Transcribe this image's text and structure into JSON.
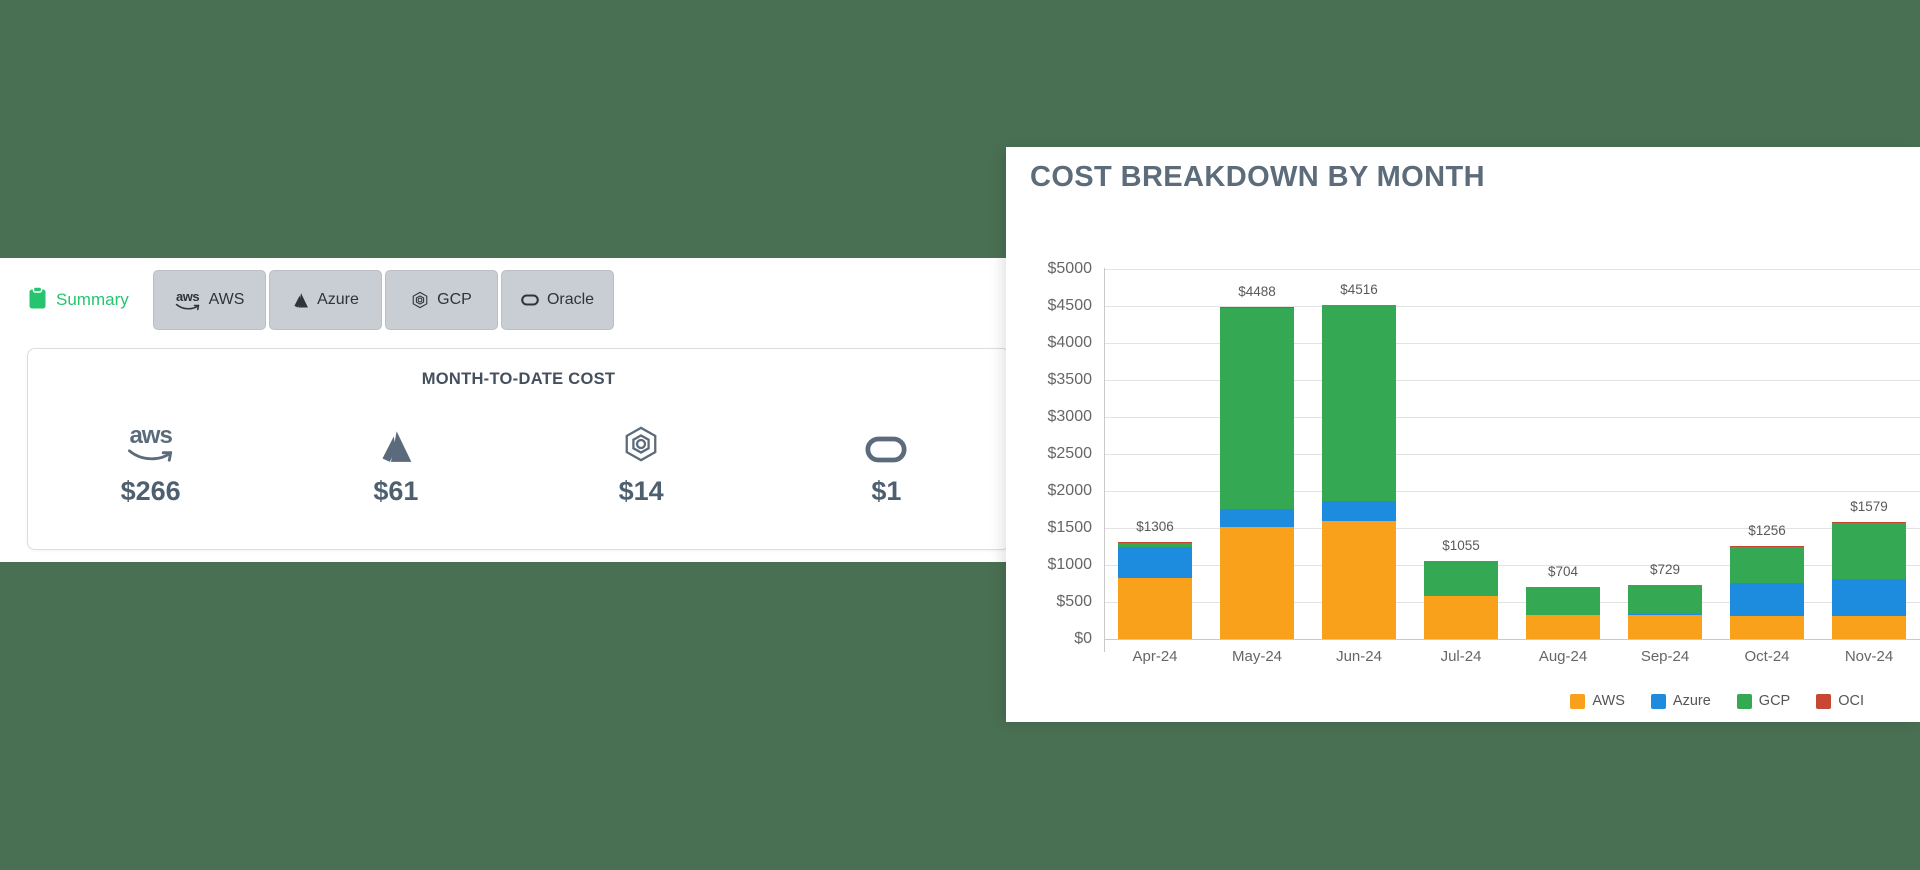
{
  "tabs": {
    "summary": {
      "label": "Summary"
    },
    "aws": {
      "label": "AWS"
    },
    "azure": {
      "label": "Azure"
    },
    "gcp": {
      "label": "GCP"
    },
    "oracle": {
      "label": "Oracle"
    }
  },
  "summary_card": {
    "title": "MONTH-TO-DATE COST",
    "providers": [
      {
        "name": "AWS",
        "icon": "aws-logo",
        "value": "$266"
      },
      {
        "name": "Azure",
        "icon": "azure-logo",
        "value": "$61"
      },
      {
        "name": "GCP",
        "icon": "gcp-logo",
        "value": "$14"
      },
      {
        "name": "Oracle",
        "icon": "oracle-logo",
        "value": "$1"
      }
    ]
  },
  "colors": {
    "page_background": "#4A7053",
    "active_tab_green": "#27C46F",
    "slate_icon": "#5B6B7B"
  },
  "chart_data": {
    "type": "bar",
    "stacked": true,
    "title": "COST BREAKDOWN BY MONTH",
    "categories": [
      "Apr-24",
      "May-24",
      "Jun-24",
      "Jul-24",
      "Aug-24",
      "Sep-24",
      "Oct-24",
      "Nov-24"
    ],
    "series": [
      {
        "name": "AWS",
        "color": "#F9A11B",
        "values": [
          818,
          1510,
          1595,
          575,
          320,
          330,
          308,
          310
        ]
      },
      {
        "name": "Azure",
        "color": "#1E8CDE",
        "values": [
          420,
          245,
          265,
          2,
          2,
          3,
          455,
          507
        ]
      },
      {
        "name": "GCP",
        "color": "#34A853",
        "values": [
          63,
          2725,
          2648,
          475,
          378,
          391,
          483,
          750
        ]
      },
      {
        "name": "OCI",
        "color": "#C74634",
        "values": [
          5,
          8,
          8,
          3,
          4,
          5,
          10,
          12
        ]
      }
    ],
    "totals_labels": [
      "$1306",
      "$4488",
      "$4516",
      "$1055",
      "$704",
      "$729",
      "$1256",
      "$1579"
    ],
    "xlabel": "",
    "ylabel": "",
    "ylim": [
      0,
      5000
    ],
    "y_tick_step": 500,
    "y_tick_prefix": "$",
    "grid": true,
    "legend_position": "bottom-right"
  }
}
